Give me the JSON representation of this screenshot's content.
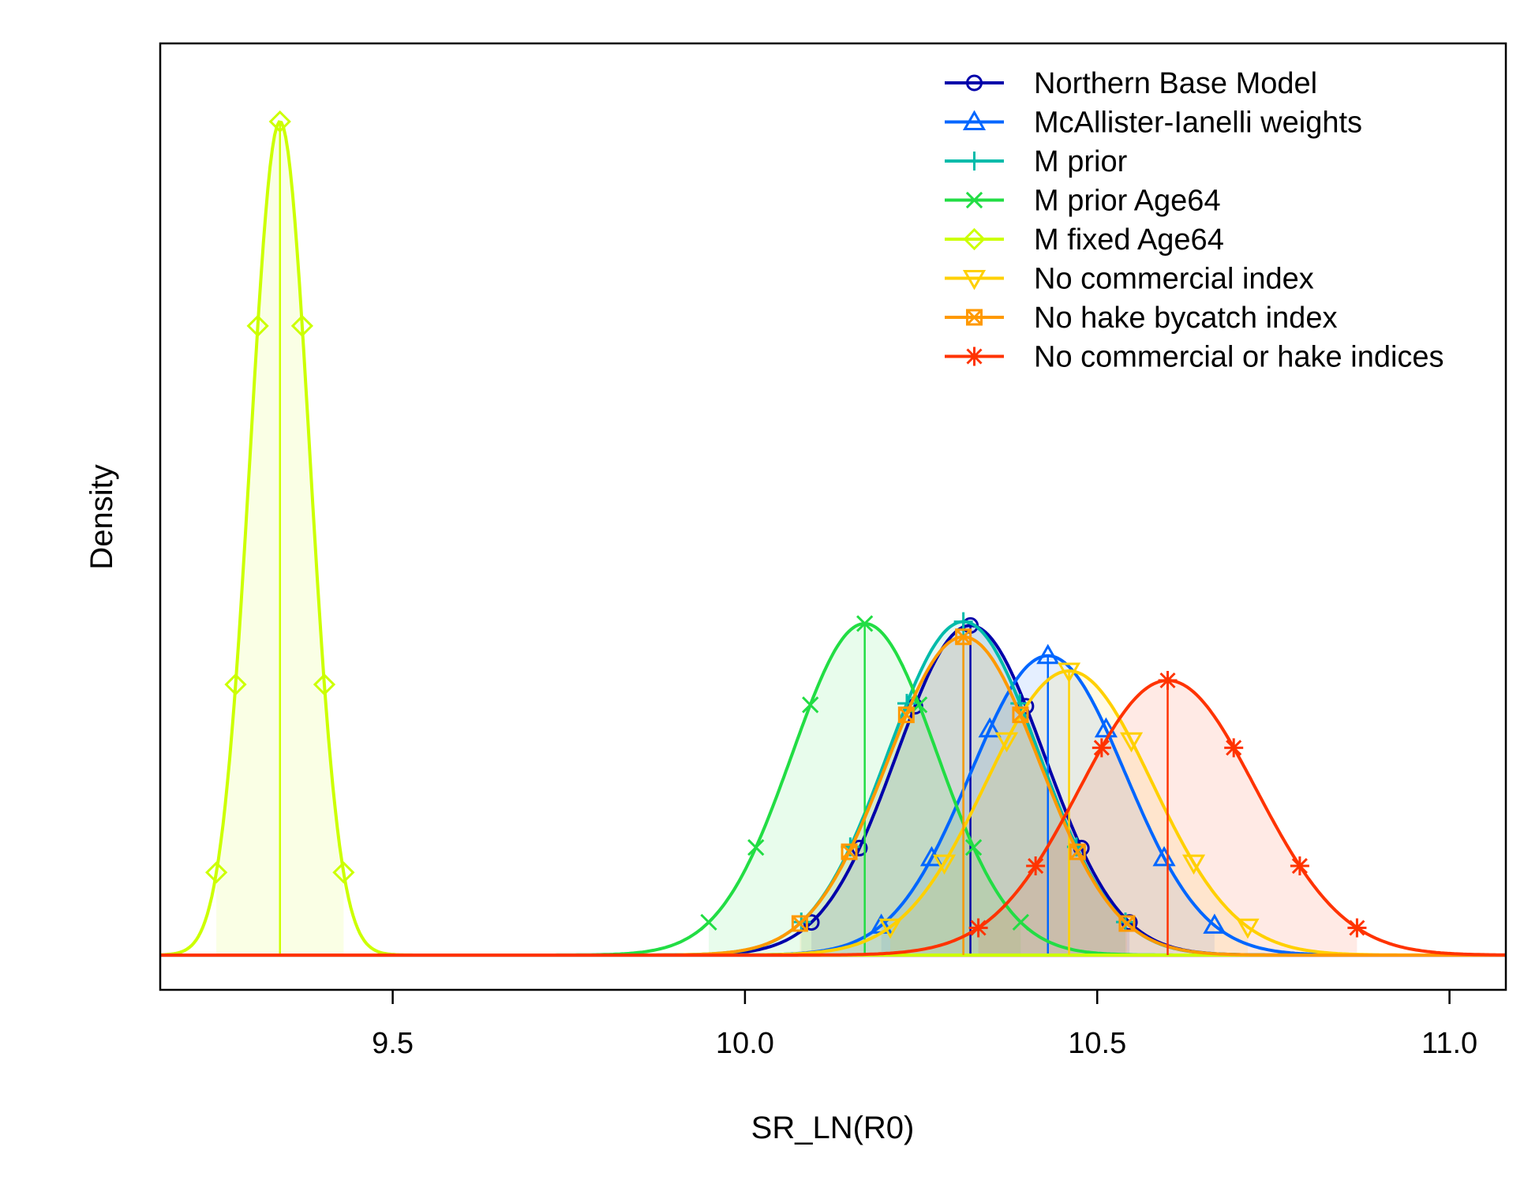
{
  "chart_data": {
    "type": "line",
    "title": "",
    "xlabel": "SR_LN(R0)",
    "ylabel": "Density",
    "xlim": [
      9.17,
      11.08
    ],
    "x_ticks": [
      9.5,
      10.0,
      10.5,
      11.0
    ],
    "x_tick_labels": [
      "9.5",
      "10.0",
      "10.5",
      "11.0"
    ],
    "y_ticks_shown": false,
    "grid": false,
    "legend_position": "top-right",
    "series": [
      {
        "name": "Northern Base Model",
        "color": "#0000AA",
        "marker": "circle",
        "mean": 10.32,
        "sd": 0.105,
        "peak": 0.348
      },
      {
        "name": "McAllister-Ianelli weights",
        "color": "#0066FF",
        "marker": "triangle-up",
        "mean": 10.43,
        "sd": 0.11,
        "peak": 0.316
      },
      {
        "name": "M prior",
        "color": "#00BBAA",
        "marker": "plus",
        "mean": 10.31,
        "sd": 0.107,
        "peak": 0.352
      },
      {
        "name": "M prior Age64",
        "color": "#22DD44",
        "marker": "cross",
        "mean": 10.17,
        "sd": 0.103,
        "peak": 0.35
      },
      {
        "name": "M fixed Age64",
        "color": "#CCFF00",
        "marker": "diamond",
        "mean": 9.34,
        "sd": 0.042,
        "peak": 0.88
      },
      {
        "name": "No commercial index",
        "color": "#FFD000",
        "marker": "triangle-down",
        "mean": 10.46,
        "sd": 0.118,
        "peak": 0.3
      },
      {
        "name": "No hake bycatch index",
        "color": "#FF9900",
        "marker": "square-cross",
        "mean": 10.31,
        "sd": 0.108,
        "peak": 0.336
      },
      {
        "name": "No commercial or hake indices",
        "color": "#FF3300",
        "marker": "asterisk",
        "mean": 10.6,
        "sd": 0.125,
        "peak": 0.29
      }
    ]
  }
}
